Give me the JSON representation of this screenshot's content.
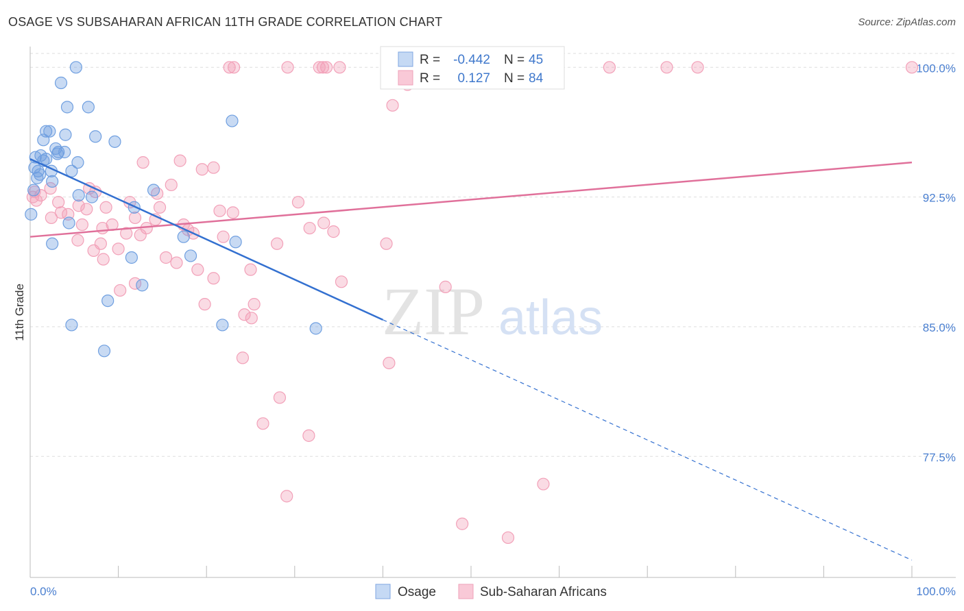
{
  "title": "OSAGE VS SUBSAHARAN AFRICAN 11TH GRADE CORRELATION CHART",
  "source": "Source: ZipAtlas.com",
  "watermark": {
    "zip": "ZIP",
    "atlas": "atlas"
  },
  "colors": {
    "osage": "#6f9fe0",
    "osage_line": "#3370d0",
    "ssa": "#f2a0b8",
    "ssa_line": "#e0709a",
    "tick_text": "#4a7fd0",
    "grid": "#dddddd"
  },
  "legend": {
    "r_label": "R =",
    "n_label": "N =",
    "osage_r": "-0.442",
    "osage_n": "45",
    "ssa_r": "0.127",
    "ssa_n": "84"
  },
  "bottom_legend": {
    "osage": "Osage",
    "ssa": "Sub-Saharan Africans"
  },
  "chart_data": {
    "type": "scatter",
    "title": "OSAGE VS SUBSAHARAN AFRICAN 11TH GRADE CORRELATION CHART",
    "xlabel": "",
    "ylabel": "11th Grade",
    "xlim": [
      0,
      100
    ],
    "ylim": [
      70.5,
      101.2
    ],
    "x_tick_labels": [
      "0.0%",
      "100.0%"
    ],
    "y_ticks": [
      77.5,
      85.0,
      92.5,
      100.0
    ],
    "y_tick_labels": [
      "77.5%",
      "85.0%",
      "92.5%",
      "100.0%"
    ],
    "grid": true,
    "legend_placement": "top-center",
    "series": [
      {
        "name": "Osage",
        "r": -0.442,
        "n": 45,
        "trend": {
          "x0": 0,
          "y0": 94.7,
          "x1": 40,
          "y1": 85.4,
          "dashed_to_x": 100,
          "dashed_to_y": 71.5
        },
        "points": [
          [
            5.2,
            100.0
          ],
          [
            3.5,
            99.1
          ],
          [
            4.2,
            97.7
          ],
          [
            6.6,
            97.7
          ],
          [
            22.9,
            96.9
          ],
          [
            1.8,
            96.3
          ],
          [
            2.2,
            96.3
          ],
          [
            4.0,
            96.1
          ],
          [
            7.4,
            96.0
          ],
          [
            1.5,
            95.8
          ],
          [
            9.6,
            95.7
          ],
          [
            2.9,
            95.3
          ],
          [
            3.2,
            95.1
          ],
          [
            3.9,
            95.1
          ],
          [
            1.2,
            94.9
          ],
          [
            3.1,
            95.0
          ],
          [
            0.6,
            94.8
          ],
          [
            1.8,
            94.7
          ],
          [
            1.5,
            94.6
          ],
          [
            5.4,
            94.5
          ],
          [
            0.5,
            94.2
          ],
          [
            0.9,
            94.0
          ],
          [
            2.4,
            94.0
          ],
          [
            4.7,
            94.0
          ],
          [
            1.1,
            93.8
          ],
          [
            0.8,
            93.6
          ],
          [
            2.5,
            93.4
          ],
          [
            0.4,
            92.9
          ],
          [
            14.0,
            92.9
          ],
          [
            5.5,
            92.6
          ],
          [
            7.0,
            92.5
          ],
          [
            11.8,
            91.9
          ],
          [
            0.1,
            91.5
          ],
          [
            4.4,
            91.0
          ],
          [
            17.4,
            90.2
          ],
          [
            23.3,
            89.9
          ],
          [
            2.5,
            89.8
          ],
          [
            11.5,
            89.0
          ],
          [
            18.2,
            89.1
          ],
          [
            12.7,
            87.4
          ],
          [
            8.8,
            86.5
          ],
          [
            4.7,
            85.1
          ],
          [
            21.8,
            85.1
          ],
          [
            32.4,
            84.9
          ],
          [
            8.4,
            83.6
          ]
        ]
      },
      {
        "name": "Sub-Saharan Africans",
        "r": 0.127,
        "n": 84,
        "trend": {
          "x0": 0,
          "y0": 90.2,
          "x1": 100,
          "y1": 94.5
        },
        "points": [
          [
            22.6,
            100.0
          ],
          [
            23.1,
            100.0
          ],
          [
            29.2,
            100.0
          ],
          [
            32.8,
            100.0
          ],
          [
            33.2,
            100.0
          ],
          [
            33.6,
            100.0
          ],
          [
            35.1,
            100.0
          ],
          [
            44.6,
            100.0
          ],
          [
            46.6,
            100.0
          ],
          [
            47.8,
            100.0
          ],
          [
            65.7,
            100.0
          ],
          [
            72.2,
            100.0
          ],
          [
            75.7,
            100.0
          ],
          [
            100.0,
            100.0
          ],
          [
            42.8,
            99.0
          ],
          [
            41.1,
            97.8
          ],
          [
            12.8,
            94.5
          ],
          [
            17.0,
            94.6
          ],
          [
            19.5,
            94.1
          ],
          [
            20.8,
            94.2
          ],
          [
            16.0,
            93.2
          ],
          [
            2.3,
            93.0
          ],
          [
            6.7,
            93.0
          ],
          [
            7.4,
            92.8
          ],
          [
            0.5,
            92.8
          ],
          [
            14.4,
            92.7
          ],
          [
            1.2,
            92.6
          ],
          [
            0.3,
            92.5
          ],
          [
            0.7,
            92.3
          ],
          [
            3.2,
            92.2
          ],
          [
            5.5,
            92.0
          ],
          [
            11.3,
            92.2
          ],
          [
            8.6,
            91.9
          ],
          [
            6.4,
            91.8
          ],
          [
            14.7,
            91.9
          ],
          [
            21.5,
            91.7
          ],
          [
            23.0,
            91.6
          ],
          [
            30.4,
            92.2
          ],
          [
            3.5,
            91.6
          ],
          [
            4.3,
            91.5
          ],
          [
            2.4,
            91.3
          ],
          [
            11.9,
            91.3
          ],
          [
            14.2,
            91.2
          ],
          [
            9.3,
            90.9
          ],
          [
            5.9,
            90.9
          ],
          [
            8.2,
            90.7
          ],
          [
            17.4,
            90.9
          ],
          [
            31.7,
            90.7
          ],
          [
            33.3,
            91.0
          ],
          [
            13.2,
            90.7
          ],
          [
            17.9,
            90.6
          ],
          [
            18.5,
            90.4
          ],
          [
            10.9,
            90.4
          ],
          [
            12.5,
            90.3
          ],
          [
            21.9,
            90.2
          ],
          [
            34.4,
            90.5
          ],
          [
            5.4,
            90.0
          ],
          [
            8.0,
            89.8
          ],
          [
            10.0,
            89.5
          ],
          [
            7.2,
            89.4
          ],
          [
            28.0,
            89.8
          ],
          [
            40.4,
            89.8
          ],
          [
            15.4,
            89.0
          ],
          [
            8.3,
            88.9
          ],
          [
            16.6,
            88.7
          ],
          [
            19.0,
            88.3
          ],
          [
            25.0,
            88.3
          ],
          [
            20.8,
            87.8
          ],
          [
            35.3,
            87.6
          ],
          [
            11.9,
            87.5
          ],
          [
            10.2,
            87.1
          ],
          [
            47.1,
            87.3
          ],
          [
            19.8,
            86.3
          ],
          [
            25.4,
            86.3
          ],
          [
            24.3,
            85.7
          ],
          [
            25.1,
            85.5
          ],
          [
            24.1,
            83.2
          ],
          [
            40.7,
            82.9
          ],
          [
            28.3,
            80.9
          ],
          [
            26.4,
            79.4
          ],
          [
            31.6,
            78.7
          ],
          [
            29.1,
            75.2
          ],
          [
            58.2,
            75.9
          ],
          [
            49.0,
            73.6
          ],
          [
            54.2,
            72.8
          ]
        ]
      }
    ]
  }
}
